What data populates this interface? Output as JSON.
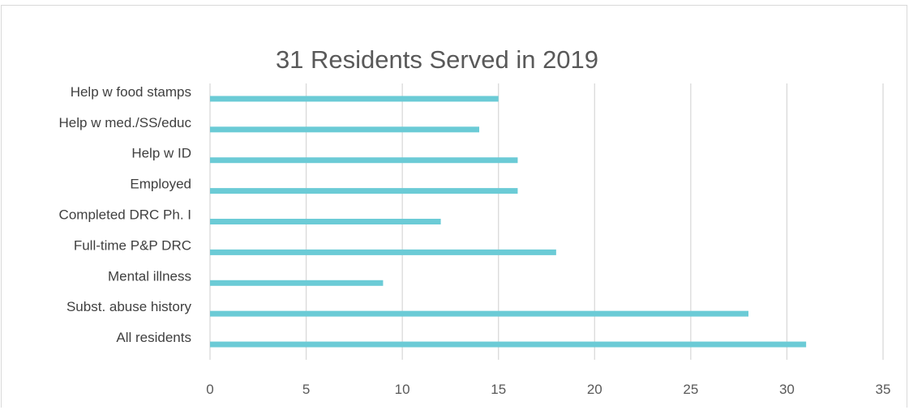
{
  "chart_data": {
    "type": "bar",
    "orientation": "horizontal",
    "title": "31 Residents Served in 2019",
    "categories": [
      "Help w food stamps",
      "Help w med./SS/educ",
      "Help w ID",
      "Employed",
      "Completed DRC Ph. I",
      "Full-time P&P DRC",
      "Mental illness",
      "Subst. abuse history",
      "All residents"
    ],
    "values": [
      15,
      14,
      16,
      16,
      12,
      18,
      9,
      28,
      31
    ],
    "xlim": [
      0,
      35
    ],
    "xticks": [
      0,
      5,
      10,
      15,
      20,
      25,
      30,
      35
    ],
    "grid": "vertical",
    "bar_color": "#6bcbd6",
    "gridline_color": "#d9d9d9",
    "xlabel": "",
    "ylabel": ""
  }
}
